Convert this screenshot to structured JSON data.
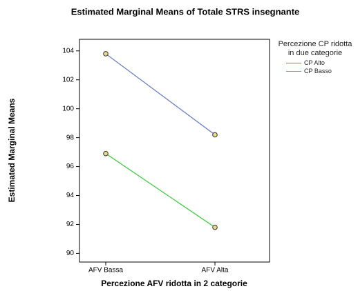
{
  "chart_data": {
    "type": "line",
    "title": "Estimated Marginal Means of Totale STRS insegnante",
    "x_label": "Percezione AFV ridotta in 2 categorie",
    "y_label": "Estimated Marginal Means",
    "legend_title": "Percezione CP ridotta in due categorie",
    "categories": [
      "AFV Bassa",
      "AFV Alta"
    ],
    "series": [
      {
        "name": "CP Alto",
        "color": "#6a80c8",
        "values": [
          103.8,
          98.2
        ]
      },
      {
        "name": "CP Basso",
        "color": "#44cc44",
        "values": [
          96.9,
          91.8
        ]
      }
    ],
    "ylim": [
      89.4,
      104.8
    ],
    "yticks": [
      90,
      92,
      94,
      96,
      98,
      100,
      102,
      104
    ],
    "legend_position": "right"
  }
}
